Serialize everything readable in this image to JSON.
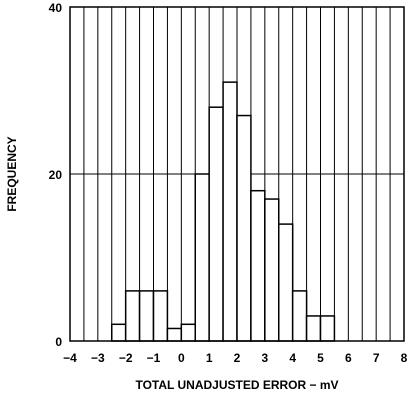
{
  "chart_data": {
    "type": "bar",
    "title": "",
    "xlabel": "TOTAL UNADJUSTED ERROR − mV",
    "ylabel": "FREQUENCY",
    "xlim": [
      -4,
      8
    ],
    "ylim": [
      0,
      40
    ],
    "grid": true,
    "x_ticks": [
      "−4",
      "−3",
      "−2",
      "−1",
      "0",
      "1",
      "2",
      "3",
      "4",
      "5",
      "6",
      "7",
      "8"
    ],
    "y_ticks": [
      "0",
      "20",
      "40"
    ],
    "bin_width": 0.5,
    "bins": [
      {
        "x_start": -2.5,
        "x_end": -2.0,
        "value": 2
      },
      {
        "x_start": -2.0,
        "x_end": -1.5,
        "value": 6
      },
      {
        "x_start": -1.5,
        "x_end": -1.0,
        "value": 6
      },
      {
        "x_start": -1.0,
        "x_end": -0.5,
        "value": 6
      },
      {
        "x_start": -0.5,
        "x_end": 0.0,
        "value": 1.5
      },
      {
        "x_start": 0.0,
        "x_end": 0.5,
        "value": 2
      },
      {
        "x_start": 0.5,
        "x_end": 1.0,
        "value": 20
      },
      {
        "x_start": 1.0,
        "x_end": 1.5,
        "value": 28
      },
      {
        "x_start": 1.5,
        "x_end": 2.0,
        "value": 31
      },
      {
        "x_start": 2.0,
        "x_end": 2.5,
        "value": 27
      },
      {
        "x_start": 2.5,
        "x_end": 3.0,
        "value": 18
      },
      {
        "x_start": 3.0,
        "x_end": 3.5,
        "value": 17
      },
      {
        "x_start": 3.5,
        "x_end": 4.0,
        "value": 14
      },
      {
        "x_start": 4.0,
        "x_end": 4.5,
        "value": 6
      },
      {
        "x_start": 4.5,
        "x_end": 5.0,
        "value": 3
      },
      {
        "x_start": 5.0,
        "x_end": 5.5,
        "value": 3
      },
      {
        "x_start": 5.5,
        "x_end": 6.0,
        "value": 0
      }
    ],
    "colors": {
      "bar_fill": "#ffffff",
      "bar_stroke": "#000000",
      "grid": "#000000",
      "frame": "#000000"
    }
  }
}
